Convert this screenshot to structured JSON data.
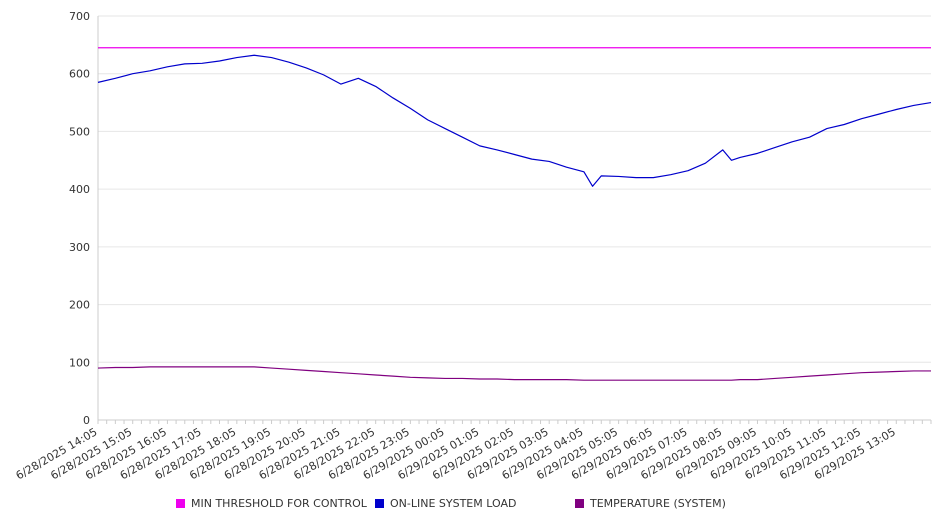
{
  "chart_data": {
    "type": "line",
    "title": "",
    "xlabel": "",
    "ylabel": "",
    "ylim": [
      0,
      700
    ],
    "yticks": [
      0,
      100,
      200,
      300,
      400,
      500,
      600,
      700
    ],
    "grid": "horizontal",
    "legend_position": "bottom",
    "xtick_labels": [
      "6/28/2025 14:05",
      "6/28/2025 15:05",
      "6/28/2025 16:05",
      "6/28/2025 17:05",
      "6/28/2025 18:05",
      "6/28/2025 19:05",
      "6/28/2025 20:05",
      "6/28/2025 21:05",
      "6/28/2025 22:05",
      "6/28/2025 23:05",
      "6/29/2025 00:05",
      "6/29/2025 01:05",
      "6/29/2025 02:05",
      "6/29/2025 03:05",
      "6/29/2025 04:05",
      "6/29/2025 05:05",
      "6/29/2025 06:05",
      "6/29/2025 07:05",
      "6/29/2025 08:05",
      "6/29/2025 09:05",
      "6/29/2025 10:05",
      "6/29/2025 11:05",
      "6/29/2025 12:05",
      "6/29/2025 13:05"
    ],
    "x": [
      "6/28/2025 14:05",
      "6/28/2025 14:35",
      "6/28/2025 15:05",
      "6/28/2025 15:35",
      "6/28/2025 16:05",
      "6/28/2025 16:35",
      "6/28/2025 17:05",
      "6/28/2025 17:35",
      "6/28/2025 18:05",
      "6/28/2025 18:35",
      "6/28/2025 19:05",
      "6/28/2025 19:35",
      "6/28/2025 20:05",
      "6/28/2025 20:35",
      "6/28/2025 21:05",
      "6/28/2025 21:35",
      "6/28/2025 22:05",
      "6/28/2025 22:35",
      "6/28/2025 23:05",
      "6/28/2025 23:35",
      "6/29/2025 00:05",
      "6/29/2025 00:35",
      "6/29/2025 01:05",
      "6/29/2025 01:35",
      "6/29/2025 02:05",
      "6/29/2025 02:35",
      "6/29/2025 03:05",
      "6/29/2025 03:35",
      "6/29/2025 04:05",
      "6/29/2025 04:20",
      "6/29/2025 04:35",
      "6/29/2025 05:05",
      "6/29/2025 05:35",
      "6/29/2025 06:05",
      "6/29/2025 06:35",
      "6/29/2025 07:05",
      "6/29/2025 07:35",
      "6/29/2025 08:05",
      "6/29/2025 08:20",
      "6/29/2025 08:35",
      "6/29/2025 09:05",
      "6/29/2025 09:35",
      "6/29/2025 10:05",
      "6/29/2025 10:35",
      "6/29/2025 11:05",
      "6/29/2025 11:35",
      "6/29/2025 12:05",
      "6/29/2025 12:35",
      "6/29/2025 13:05",
      "6/29/2025 13:35",
      "6/29/2025 14:05"
    ],
    "series": [
      {
        "name": "MIN THRESHOLD FOR CONTROL",
        "color": "#ee00ee",
        "values": [
          645,
          645,
          645,
          645,
          645,
          645,
          645,
          645,
          645,
          645,
          645,
          645,
          645,
          645,
          645,
          645,
          645,
          645,
          645,
          645,
          645,
          645,
          645,
          645,
          645,
          645,
          645,
          645,
          645,
          645,
          645,
          645,
          645,
          645,
          645,
          645,
          645,
          645,
          645,
          645,
          645,
          645,
          645,
          645,
          645,
          645,
          645,
          645,
          645,
          645,
          645
        ]
      },
      {
        "name": "ON-LINE SYSTEM LOAD",
        "color": "#0000cc",
        "values": [
          585,
          592,
          600,
          605,
          612,
          617,
          618,
          622,
          628,
          632,
          628,
          620,
          610,
          598,
          582,
          592,
          578,
          558,
          540,
          520,
          505,
          490,
          475,
          468,
          460,
          452,
          448,
          438,
          430,
          405,
          423,
          422,
          420,
          420,
          425,
          432,
          445,
          468,
          450,
          455,
          462,
          472,
          482,
          490,
          505,
          512,
          522,
          530,
          538,
          545,
          550
        ]
      },
      {
        "name": "TEMPERATURE (SYSTEM)",
        "color": "#800080",
        "values": [
          90,
          91,
          91,
          92,
          92,
          92,
          92,
          92,
          92,
          92,
          90,
          88,
          86,
          84,
          82,
          80,
          78,
          76,
          74,
          73,
          72,
          72,
          71,
          71,
          70,
          70,
          70,
          70,
          69,
          69,
          69,
          69,
          69,
          69,
          69,
          69,
          69,
          69,
          69,
          70,
          70,
          72,
          74,
          76,
          78,
          80,
          82,
          83,
          84,
          85,
          85
        ]
      }
    ],
    "axis_colors": {
      "axis": "#cccccc",
      "grid": "#e6e6e6",
      "text": "#333333"
    }
  }
}
